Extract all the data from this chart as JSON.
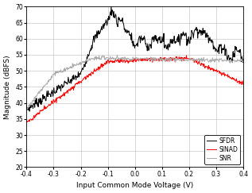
{
  "title": "",
  "xlabel": "Input Common Mode Voltage (V)",
  "ylabel": "Magnitude (dBFS)",
  "xlim": [
    -0.4,
    0.4
  ],
  "ylim": [
    20,
    70
  ],
  "yticks": [
    20,
    25,
    30,
    35,
    40,
    45,
    50,
    55,
    60,
    65,
    70
  ],
  "xticks": [
    -0.4,
    -0.3,
    -0.2,
    -0.1,
    0.0,
    0.1,
    0.2,
    0.3,
    0.4
  ],
  "sfdr_color": "#000000",
  "sinad_color": "#ff0000",
  "snr_color": "#aaaaaa",
  "legend_labels": [
    "SFDR",
    "SINAD",
    "SNR"
  ],
  "background_color": "#ffffff",
  "figsize": [
    3.17,
    2.43
  ],
  "dpi": 100
}
